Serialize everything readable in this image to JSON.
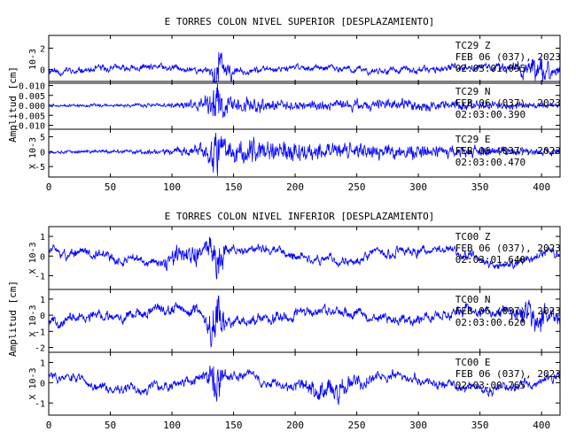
{
  "chart_data": [
    {
      "type": "line",
      "title": "E TORRES COLON NIVEL SUPERIOR [DESPLAZAMIENTO]",
      "ylabel": "Amplitud [cm]",
      "xlim": [
        0,
        415
      ],
      "xticks": [
        0,
        50,
        100,
        150,
        200,
        250,
        300,
        350,
        400
      ],
      "line_color": "#0000ff",
      "panels": [
        {
          "station": "TC29",
          "component": "Z",
          "date": "FEB 06 (037), 2023",
          "time": "02:03:01.095",
          "scale_label": "10-3",
          "ylim": [
            -1.3,
            3.2
          ],
          "yticks": [
            "2",
            "0"
          ],
          "ytick_values": [
            2,
            0
          ],
          "signal": {
            "seed": 11,
            "noise": 0.35,
            "base_freq": 0.08,
            "drift": 0.2,
            "bursts": [
              {
                "center": 136,
                "width": 4,
                "amp": 1.8
              },
              {
                "center": 142,
                "width": 8,
                "amp": 0.9
              },
              {
                "center": 395,
                "width": 20,
                "amp": 0.8
              }
            ]
          }
        },
        {
          "station": "TC29",
          "component": "N",
          "date": "FEB 06 (037), 2023",
          "time": "02:03:00.390",
          "scale_label": "",
          "ylim": [
            -0.012,
            0.012
          ],
          "yticks": [
            "0.010",
            "0.005",
            "0.000",
            "-0.005",
            "-0.010"
          ],
          "ytick_values": [
            0.01,
            0.005,
            0,
            -0.005,
            -0.01
          ],
          "signal": {
            "seed": 23,
            "noise": 0.0008,
            "base_freq": 0.6,
            "drift": 0,
            "bursts": [
              {
                "center": 136,
                "width": 5,
                "amp": 0.008
              },
              {
                "center": 150,
                "width": 30,
                "amp": 0.004
              },
              {
                "center": 280,
                "width": 120,
                "amp": 0.002
              }
            ]
          }
        },
        {
          "station": "TC29",
          "component": "E",
          "date": "FEB 06 (037), 2023",
          "time": "02:03:00.470",
          "scale_label": "X 10-3",
          "ylim": [
            -8.5,
            7.5
          ],
          "yticks": [
            "5",
            "0",
            "-5"
          ],
          "ytick_values": [
            5,
            0,
            -5
          ],
          "signal": {
            "seed": 37,
            "noise": 0.6,
            "base_freq": 0.7,
            "drift": 0,
            "bursts": [
              {
                "center": 136,
                "width": 5,
                "amp": 5.5
              },
              {
                "center": 160,
                "width": 45,
                "amp": 3.0
              },
              {
                "center": 270,
                "width": 110,
                "amp": 2.0
              }
            ]
          }
        }
      ]
    },
    {
      "type": "line",
      "title": "E TORRES COLON NIVEL INFERIOR [DESPLAZAMIENTO]",
      "ylabel": "Amplitud [cm]",
      "xlim": [
        0,
        415
      ],
      "xticks": [
        0,
        50,
        100,
        150,
        200,
        250,
        300,
        350,
        400
      ],
      "line_color": "#0000ff",
      "panels": [
        {
          "station": "TC00",
          "component": "Z",
          "date": "FEB 06 (037), 2023",
          "time": "02:03:01.640",
          "scale_label": "X 10-3",
          "ylim": [
            -1.7,
            1.5
          ],
          "yticks": [
            "1",
            "0",
            "-1"
          ],
          "ytick_values": [
            1,
            0,
            -1
          ],
          "signal": {
            "seed": 51,
            "noise": 0.25,
            "base_freq": 0.05,
            "drift": 0.5,
            "bursts": [
              {
                "center": 136,
                "width": 6,
                "amp": 1.1
              },
              {
                "center": 110,
                "width": 15,
                "amp": 0.4
              }
            ]
          }
        },
        {
          "station": "TC00",
          "component": "N",
          "date": "FEB 06 (037), 2023",
          "time": "02:03:00.620",
          "scale_label": "X 10-3",
          "ylim": [
            -2.3,
            1.6
          ],
          "yticks": [
            "1",
            "0",
            "-1",
            "-2"
          ],
          "ytick_values": [
            1,
            0,
            -1,
            -2
          ],
          "signal": {
            "seed": 67,
            "noise": 0.35,
            "base_freq": 0.06,
            "drift": 0.4,
            "bursts": [
              {
                "center": 136,
                "width": 6,
                "amp": 1.3
              },
              {
                "center": 395,
                "width": 15,
                "amp": 0.6
              }
            ]
          }
        },
        {
          "station": "TC00",
          "component": "E",
          "date": "FEB 06 (037), 2023",
          "time": "02:03:00.765",
          "scale_label": "X 10-3",
          "ylim": [
            -1.6,
            1.5
          ],
          "yticks": [
            "1",
            "0",
            "-1"
          ],
          "ytick_values": [
            1,
            0,
            -1
          ],
          "signal": {
            "seed": 83,
            "noise": 0.25,
            "base_freq": 0.05,
            "drift": 0.5,
            "bursts": [
              {
                "center": 136,
                "width": 6,
                "amp": 1.0
              },
              {
                "center": 230,
                "width": 20,
                "amp": 0.5
              }
            ]
          }
        }
      ]
    }
  ]
}
